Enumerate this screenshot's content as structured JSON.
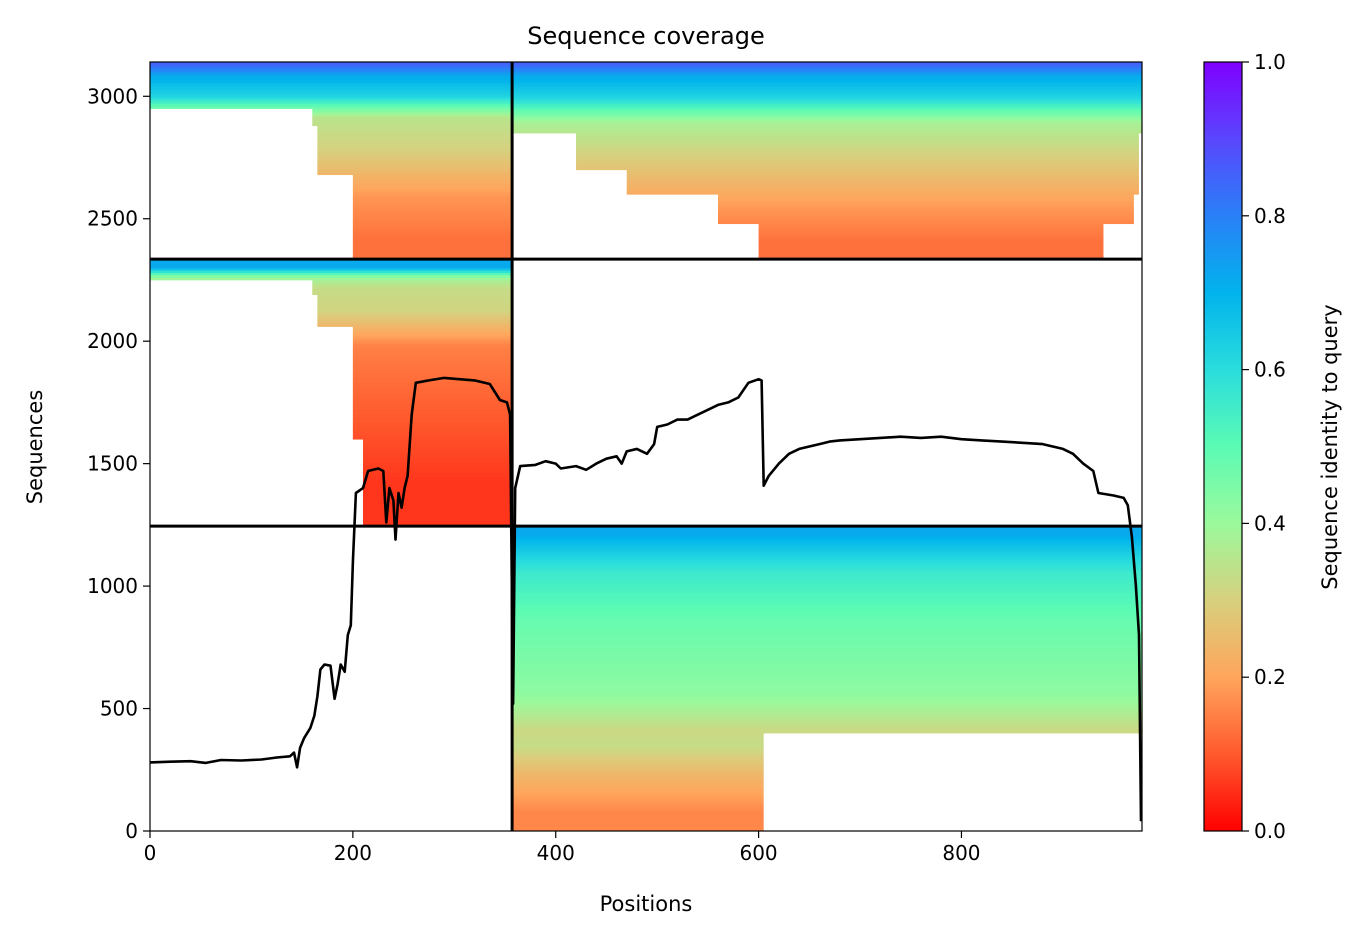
{
  "chart_data": {
    "type": "heatmap",
    "title": "Sequence coverage",
    "xlabel": "Positions",
    "ylabel": "Sequences",
    "xlim": [
      0,
      978
    ],
    "ylim": [
      0,
      3140
    ],
    "xticks": [
      "0",
      "200",
      "400",
      "600",
      "800"
    ],
    "xtick_values": [
      0,
      200,
      400,
      600,
      800
    ],
    "yticks": [
      "0",
      "500",
      "1000",
      "1500",
      "2000",
      "2500",
      "3000"
    ],
    "ytick_values": [
      0,
      500,
      1000,
      1500,
      2000,
      2500,
      3000
    ],
    "grid": false,
    "colorbar": {
      "label": "Sequence identity to query",
      "cmap": "rainbow_r",
      "range": [
        0,
        1
      ],
      "ticks": [
        "0.0",
        "0.2",
        "0.4",
        "0.6",
        "0.8",
        "1.0"
      ],
      "tick_values": [
        0,
        0.2,
        0.4,
        0.6,
        0.8,
        1.0
      ],
      "stops": [
        {
          "v": 0.0,
          "color": "#ff0000"
        },
        {
          "v": 0.1,
          "color": "#ff5a2e"
        },
        {
          "v": 0.2,
          "color": "#ffa55c"
        },
        {
          "v": 0.3,
          "color": "#d7d07e"
        },
        {
          "v": 0.4,
          "color": "#9bf99c"
        },
        {
          "v": 0.5,
          "color": "#5bfbb4"
        },
        {
          "v": 0.6,
          "color": "#2adddd"
        },
        {
          "v": 0.7,
          "color": "#01b3ec"
        },
        {
          "v": 0.8,
          "color": "#2a80f7"
        },
        {
          "v": 0.9,
          "color": "#5a46fd"
        },
        {
          "v": 1.0,
          "color": "#8000ff"
        }
      ]
    },
    "divider_lines": {
      "vertical_x": 357,
      "horizontal_y": [
        1245,
        2335
      ],
      "color": "#000000"
    },
    "coverage_blocks": [
      {
        "name": "block-bottom-right",
        "x_range": [
          357,
          978
        ],
        "y_range": [
          0,
          1245
        ],
        "bands": [
          {
            "y0": 1180,
            "y1": 1245,
            "identity": 0.72,
            "x1": 978
          },
          {
            "y0": 1100,
            "y1": 1180,
            "identity": 0.64,
            "x1": 978
          },
          {
            "y0": 1010,
            "y1": 1100,
            "identity": 0.56,
            "x1": 978
          },
          {
            "y0": 700,
            "y1": 1010,
            "identity": 0.48,
            "x1": 978
          },
          {
            "y0": 420,
            "y1": 700,
            "identity": 0.42,
            "x1": 978
          },
          {
            "y0": 400,
            "y1": 420,
            "identity": 0.32,
            "x1": 978
          },
          {
            "y0": 300,
            "y1": 400,
            "identity": 0.33,
            "x1": 605
          },
          {
            "y0": 160,
            "y1": 300,
            "identity": 0.24,
            "x1": 605
          },
          {
            "y0": 0,
            "y1": 160,
            "identity": 0.16,
            "x1": 605
          }
        ]
      },
      {
        "name": "block-middle-left",
        "x_range": [
          0,
          357
        ],
        "y_range": [
          1245,
          2335
        ],
        "bands": [
          {
            "y0": 2270,
            "y1": 2335,
            "identity": 0.72,
            "x0": 0
          },
          {
            "y0": 2250,
            "y1": 2270,
            "identity": 0.4,
            "x0": 0
          },
          {
            "y0": 2190,
            "y1": 2250,
            "identity": 0.33,
            "x0": 160
          },
          {
            "y0": 2060,
            "y1": 2190,
            "identity": 0.31,
            "x0": 165
          },
          {
            "y0": 1900,
            "y1": 2060,
            "identity": 0.15,
            "x0": 200
          },
          {
            "y0": 1600,
            "y1": 1900,
            "identity": 0.11,
            "x0": 200
          },
          {
            "y0": 1245,
            "y1": 1600,
            "identity": 0.06,
            "x0": 210
          }
        ]
      },
      {
        "name": "block-top-left",
        "x_range": [
          0,
          357
        ],
        "y_range": [
          2335,
          3140
        ],
        "bands": [
          {
            "y0": 3120,
            "y1": 3140,
            "identity": 0.85,
            "x0": 0
          },
          {
            "y0": 3050,
            "y1": 3120,
            "identity": 0.72,
            "x0": 0
          },
          {
            "y0": 2950,
            "y1": 3050,
            "identity": 0.62,
            "x0": 0
          },
          {
            "y0": 2880,
            "y1": 2950,
            "identity": 0.35,
            "x0": 160
          },
          {
            "y0": 2680,
            "y1": 2880,
            "identity": 0.3,
            "x0": 165
          },
          {
            "y0": 2500,
            "y1": 2680,
            "identity": 0.18,
            "x0": 200
          },
          {
            "y0": 2335,
            "y1": 2500,
            "identity": 0.13,
            "x0": 200
          }
        ]
      },
      {
        "name": "block-top-right",
        "x_range": [
          357,
          978
        ],
        "y_range": [
          2335,
          3140
        ],
        "bands": [
          {
            "y0": 3120,
            "y1": 3140,
            "identity": 0.85,
            "x0": 357,
            "x1": 978
          },
          {
            "y0": 3050,
            "y1": 3120,
            "identity": 0.72,
            "x0": 357,
            "x1": 978
          },
          {
            "y0": 2940,
            "y1": 3050,
            "identity": 0.62,
            "x0": 357,
            "x1": 978
          },
          {
            "y0": 2850,
            "y1": 2940,
            "identity": 0.38,
            "x0": 357,
            "x1": 978
          },
          {
            "y0": 2700,
            "y1": 2850,
            "identity": 0.31,
            "x0": 420,
            "x1": 975
          },
          {
            "y0": 2600,
            "y1": 2700,
            "identity": 0.24,
            "x0": 470,
            "x1": 975
          },
          {
            "y0": 2480,
            "y1": 2600,
            "identity": 0.18,
            "x0": 560,
            "x1": 970
          },
          {
            "y0": 2335,
            "y1": 2480,
            "identity": 0.13,
            "x0": 600,
            "x1": 940
          }
        ]
      }
    ],
    "coverage_line": {
      "color": "#000000",
      "points": [
        [
          0,
          280
        ],
        [
          20,
          283
        ],
        [
          40,
          285
        ],
        [
          55,
          278
        ],
        [
          70,
          290
        ],
        [
          90,
          288
        ],
        [
          110,
          292
        ],
        [
          125,
          300
        ],
        [
          138,
          305
        ],
        [
          142,
          320
        ],
        [
          145,
          260
        ],
        [
          148,
          340
        ],
        [
          152,
          380
        ],
        [
          158,
          420
        ],
        [
          162,
          470
        ],
        [
          165,
          550
        ],
        [
          168,
          660
        ],
        [
          172,
          680
        ],
        [
          178,
          675
        ],
        [
          182,
          540
        ],
        [
          185,
          600
        ],
        [
          188,
          680
        ],
        [
          192,
          650
        ],
        [
          195,
          800
        ],
        [
          198,
          840
        ],
        [
          200,
          1100
        ],
        [
          203,
          1380
        ],
        [
          210,
          1400
        ],
        [
          215,
          1470
        ],
        [
          225,
          1480
        ],
        [
          230,
          1470
        ],
        [
          233,
          1260
        ],
        [
          236,
          1400
        ],
        [
          240,
          1350
        ],
        [
          242,
          1190
        ],
        [
          245,
          1380
        ],
        [
          248,
          1320
        ],
        [
          251,
          1400
        ],
        [
          254,
          1450
        ],
        [
          258,
          1700
        ],
        [
          262,
          1830
        ],
        [
          275,
          1840
        ],
        [
          290,
          1850
        ],
        [
          305,
          1845
        ],
        [
          320,
          1840
        ],
        [
          335,
          1825
        ],
        [
          345,
          1760
        ],
        [
          352,
          1750
        ],
        [
          355,
          1700
        ],
        [
          357,
          900
        ],
        [
          358,
          520
        ],
        [
          360,
          1400
        ],
        [
          365,
          1490
        ],
        [
          380,
          1495
        ],
        [
          390,
          1510
        ],
        [
          400,
          1500
        ],
        [
          405,
          1480
        ],
        [
          420,
          1490
        ],
        [
          430,
          1475
        ],
        [
          440,
          1500
        ],
        [
          450,
          1520
        ],
        [
          460,
          1530
        ],
        [
          465,
          1500
        ],
        [
          470,
          1550
        ],
        [
          480,
          1560
        ],
        [
          490,
          1540
        ],
        [
          497,
          1580
        ],
        [
          500,
          1650
        ],
        [
          510,
          1660
        ],
        [
          520,
          1680
        ],
        [
          530,
          1680
        ],
        [
          540,
          1700
        ],
        [
          550,
          1720
        ],
        [
          560,
          1740
        ],
        [
          570,
          1750
        ],
        [
          580,
          1770
        ],
        [
          590,
          1830
        ],
        [
          600,
          1845
        ],
        [
          603,
          1840
        ],
        [
          605,
          1410
        ],
        [
          610,
          1450
        ],
        [
          620,
          1500
        ],
        [
          630,
          1540
        ],
        [
          640,
          1560
        ],
        [
          650,
          1570
        ],
        [
          660,
          1580
        ],
        [
          670,
          1590
        ],
        [
          680,
          1595
        ],
        [
          700,
          1600
        ],
        [
          720,
          1605
        ],
        [
          740,
          1610
        ],
        [
          760,
          1605
        ],
        [
          780,
          1610
        ],
        [
          800,
          1600
        ],
        [
          820,
          1595
        ],
        [
          840,
          1590
        ],
        [
          860,
          1585
        ],
        [
          880,
          1580
        ],
        [
          900,
          1560
        ],
        [
          910,
          1540
        ],
        [
          920,
          1500
        ],
        [
          930,
          1470
        ],
        [
          935,
          1380
        ],
        [
          950,
          1370
        ],
        [
          960,
          1360
        ],
        [
          964,
          1330
        ],
        [
          968,
          1200
        ],
        [
          972,
          1000
        ],
        [
          975,
          800
        ],
        [
          977,
          40
        ]
      ]
    }
  }
}
